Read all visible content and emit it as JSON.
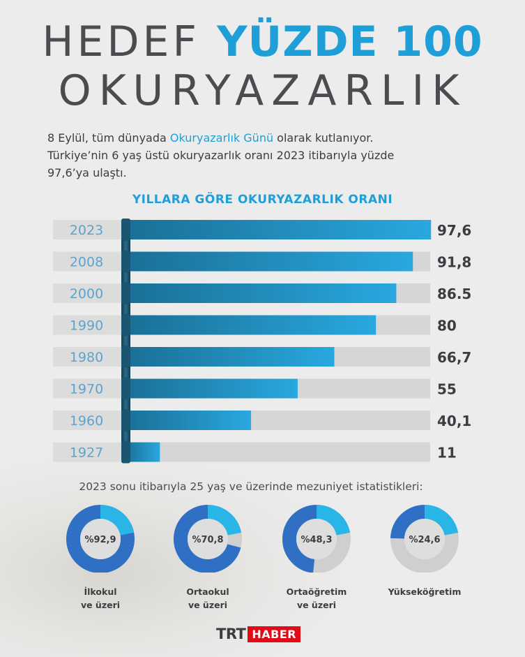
{
  "title": {
    "line1_muted": "HEDEF",
    "line1_accent": "YÜZDE 100",
    "line2": "OKURYAZARLIK"
  },
  "intro": {
    "part1": "8 Eylül, tüm dünyada ",
    "highlight": "Okuryazarlık Günü",
    "part2": " olarak kutlanıyor.",
    "line2": "Türkiye’nin 6 yaş üstü okuryazarlık oranı 2023 itibarıyla yüzde",
    "line3": "97,6’ya ulaştı."
  },
  "chart_data": [
    {
      "type": "bar",
      "orientation": "horizontal",
      "title": "YILLARA GÖRE OKURYAZARLIK ORANI",
      "categories": [
        "2023",
        "2008",
        "2000",
        "1990",
        "1980",
        "1970",
        "1960",
        "1927"
      ],
      "values": [
        97.6,
        91.8,
        86.5,
        80,
        66.7,
        55,
        40.1,
        11
      ],
      "value_labels": [
        "97,6",
        "91,8",
        "86.5",
        "80",
        "66,7",
        "55",
        "40,1",
        "11"
      ],
      "xlim": [
        0,
        100
      ],
      "grid": false
    },
    {
      "type": "pie",
      "variant": "donut",
      "title": "2023 sonu itibarıyla 25 yaş ve üzerinde mezuniyet istatistikleri:",
      "items": [
        {
          "label_line1": "İlkokul",
          "label_line2": "ve üzeri",
          "value": 92.9,
          "value_label": "%92,9"
        },
        {
          "label_line1": "Ortaokul",
          "label_line2": "ve üzeri",
          "value": 70.8,
          "value_label": "%70,8"
        },
        {
          "label_line1": "Ortaöğretim",
          "label_line2": "ve üzeri",
          "value": 48.3,
          "value_label": "%48,3"
        },
        {
          "label_line1": "Yükseköğretim",
          "label_line2": "",
          "value": 24.6,
          "value_label": "%24,6"
        }
      ]
    }
  ],
  "colors": {
    "accent": "#1e9fd8",
    "bar_start": "#1a6f96",
    "bar_end": "#29a8df",
    "track": "#d6d6d6",
    "label_box": "#dcdcdc",
    "year_text": "#5fa3cc",
    "dark_text": "#3a3d41",
    "donut_blue": "#2f6fc4",
    "donut_cyan": "#29b6e6",
    "donut_track": "#cfcfcf",
    "brand_red": "#e30a17"
  },
  "logo": {
    "trt": "TRT",
    "haber": "HABER"
  }
}
